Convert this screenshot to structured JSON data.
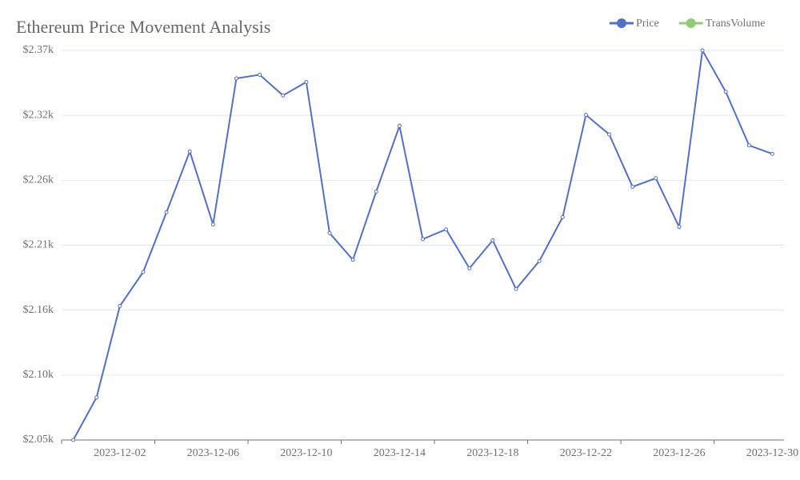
{
  "chart_data": {
    "type": "line",
    "title": "Ethereum Price Movement Analysis",
    "x": [
      "2023-11-30",
      "2023-12-01",
      "2023-12-02",
      "2023-12-03",
      "2023-12-04",
      "2023-12-05",
      "2023-12-06",
      "2023-12-07",
      "2023-12-08",
      "2023-12-09",
      "2023-12-10",
      "2023-12-11",
      "2023-12-12",
      "2023-12-13",
      "2023-12-14",
      "2023-12-15",
      "2023-12-16",
      "2023-12-17",
      "2023-12-18",
      "2023-12-19",
      "2023-12-20",
      "2023-12-21",
      "2023-12-22",
      "2023-12-23",
      "2023-12-24",
      "2023-12-25",
      "2023-12-26",
      "2023-12-27",
      "2023-12-28",
      "2023-12-29",
      "2023-12-30"
    ],
    "xticks": [
      "2023-12-02",
      "2023-12-06",
      "2023-12-10",
      "2023-12-14",
      "2023-12-18",
      "2023-12-22",
      "2023-12-26",
      "2023-12-30"
    ],
    "series": [
      {
        "name": "Price",
        "color": "#5470c6",
        "values": [
          2050,
          2085,
          2160,
          2188,
          2237,
          2287,
          2227,
          2347,
          2350,
          2333,
          2344,
          2220,
          2198,
          2254,
          2308,
          2215,
          2223,
          2191,
          2214,
          2174,
          2197,
          2233,
          2317,
          2301,
          2258,
          2265,
          2225,
          2370,
          2336,
          2292,
          2285
        ]
      }
    ],
    "legend_entries": [
      {
        "name": "TransVolume",
        "color": "#91cc75"
      }
    ],
    "ylim": [
      2050,
      2370
    ],
    "yticks": [
      {
        "value": 2050,
        "label": "$2.05k"
      },
      {
        "value": 2103.33,
        "label": "$2.10k"
      },
      {
        "value": 2156.67,
        "label": "$2.16k"
      },
      {
        "value": 2210,
        "label": "$2.21k"
      },
      {
        "value": 2263.33,
        "label": "$2.26k"
      },
      {
        "value": 2316.67,
        "label": "$2.32k"
      },
      {
        "value": 2370,
        "label": "$2.37k"
      }
    ],
    "grid": true
  }
}
